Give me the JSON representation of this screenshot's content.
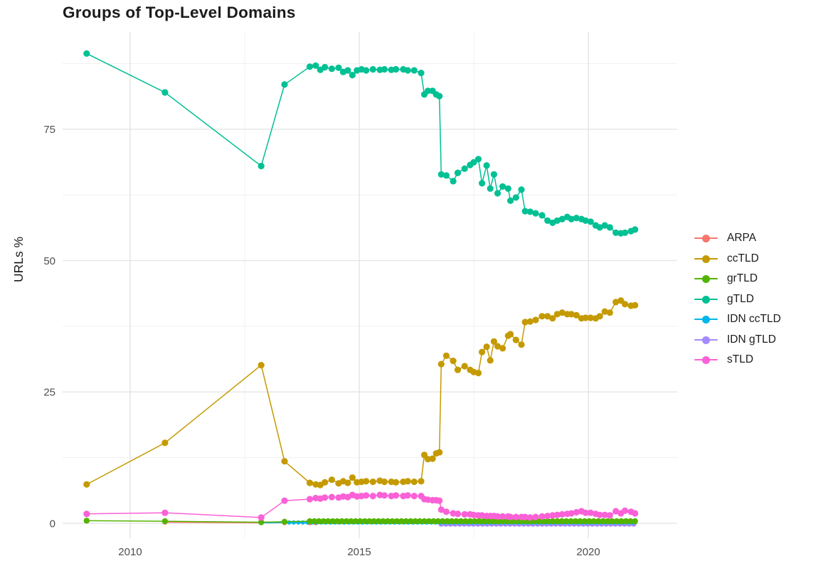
{
  "chart_data": {
    "type": "line",
    "title": "Groups of Top-Level Domains",
    "xlabel": "",
    "ylabel": "URLs %",
    "grid": true,
    "legend_position": "right",
    "xlim": [
      2008.525,
      2021.94
    ],
    "ylim": [
      -2.84,
      93.5
    ],
    "x_ticks": [
      2010,
      2015,
      2020
    ],
    "x_minor_ticks": [
      2012.5,
      2017.5
    ],
    "y_ticks": [
      0,
      25,
      50,
      75
    ],
    "y_minor_ticks": [
      12.5,
      37.5,
      62.5,
      87.5
    ],
    "legend": [
      {
        "label": "ARPA",
        "color": "#F8766D"
      },
      {
        "label": "ccTLD",
        "color": "#C49A00"
      },
      {
        "label": "grTLD",
        "color": "#53B400"
      },
      {
        "label": "gTLD",
        "color": "#00C094"
      },
      {
        "label": "IDN ccTLD",
        "color": "#00B6EB"
      },
      {
        "label": "IDN gTLD",
        "color": "#A58AFF"
      },
      {
        "label": "sTLD",
        "color": "#FB61D7"
      }
    ],
    "shared_x": [
      2009.05,
      2010.76,
      2012.86,
      2013.37,
      2013.92,
      2014.05,
      2014.15,
      2014.25,
      2014.4,
      2014.55,
      2014.65,
      2014.75,
      2014.85,
      2014.95,
      2015.05,
      2015.15,
      2015.3,
      2015.45,
      2015.55,
      2015.7,
      2015.8,
      2015.96,
      2016.06,
      2016.2,
      2016.35,
      2016.42,
      2016.5,
      2016.6,
      2016.68,
      2016.75,
      2016.79,
      2016.9,
      2017.05,
      2017.15,
      2017.3,
      2017.42,
      2017.5,
      2017.6,
      2017.68,
      2017.78,
      2017.86,
      2017.94,
      2018.02,
      2018.13,
      2018.25,
      2018.3,
      2018.42,
      2018.54,
      2018.62,
      2018.73,
      2018.85,
      2018.99,
      2019.11,
      2019.22,
      2019.32,
      2019.43,
      2019.54,
      2019.63,
      2019.74,
      2019.85,
      2019.94,
      2020.05,
      2020.16,
      2020.25,
      2020.36,
      2020.47,
      2020.6,
      2020.71,
      2020.8,
      2020.93,
      2021.02
    ],
    "series": [
      {
        "name": "ARPA",
        "color": "#F8766D",
        "r": 3.5,
        "x": [
          2010.76,
          2012.86,
          2013.37,
          2013.92,
          2014.05
        ],
        "y": [
          0.2,
          0.1,
          0.1,
          0.1,
          0.1
        ]
      },
      {
        "name": "IDN gTLD",
        "color": "#A58AFF",
        "r": 4,
        "flat": {
          "from": 2016.79,
          "to": 2021.02,
          "step": 0.1,
          "value": -0.1
        }
      },
      {
        "name": "IDN ccTLD",
        "color": "#00B6EB",
        "r": 3,
        "x": [
          2012.86
        ],
        "y": [
          0.1
        ],
        "flat": {
          "from": 2013.37,
          "to": 2021.02,
          "step": 0.1,
          "value": 0.15
        }
      },
      {
        "name": "gTLD",
        "color": "#00C094",
        "r": 4.6,
        "use_shared_x": true,
        "y": [
          89.4,
          82,
          68,
          83.5,
          86.9,
          87.1,
          86.3,
          86.8,
          86.5,
          86.7,
          85.9,
          86.2,
          85.3,
          86.2,
          86.4,
          86.2,
          86.4,
          86.3,
          86.4,
          86.3,
          86.4,
          86.4,
          86.2,
          86.2,
          85.7,
          81.6,
          82.3,
          82.3,
          81.6,
          81.3,
          66.4,
          66.2,
          65.1,
          66.7,
          67.5,
          68.2,
          68.7,
          69.3,
          64.7,
          68.1,
          63.7,
          66.4,
          62.8,
          64.1,
          63.7,
          61.4,
          62.0,
          63.5,
          59.4,
          59.3,
          59.0,
          58.6,
          57.6,
          57.2,
          57.6,
          57.9,
          58.3,
          57.9,
          58.1,
          57.9,
          57.6,
          57.4,
          56.7,
          56.3,
          56.7,
          56.3,
          55.3,
          55.2,
          55.3,
          55.6,
          55.9
        ]
      },
      {
        "name": "ccTLD",
        "color": "#C49A00",
        "r": 4.6,
        "use_shared_x": true,
        "y": [
          7.4,
          15.3,
          30.1,
          11.8,
          7.7,
          7.4,
          7.3,
          7.8,
          8.3,
          7.6,
          8.0,
          7.7,
          8.7,
          7.8,
          7.9,
          8.0,
          7.9,
          8.1,
          7.9,
          7.9,
          7.8,
          7.9,
          8.0,
          7.9,
          8.0,
          13.0,
          12.2,
          12.3,
          13.3,
          13.5,
          30.3,
          31.9,
          30.9,
          29.2,
          29.9,
          29.2,
          28.8,
          28.6,
          32.6,
          33.6,
          31.0,
          34.6,
          33.7,
          33.3,
          35.7,
          36.0,
          34.9,
          34.0,
          38.3,
          38.4,
          38.7,
          39.4,
          39.4,
          39.0,
          39.8,
          40.1,
          39.8,
          39.8,
          39.6,
          39.0,
          39.1,
          39.1,
          39.0,
          39.4,
          40.3,
          40.1,
          42.1,
          42.4,
          41.7,
          41.4,
          41.5
        ]
      },
      {
        "name": "grTLD",
        "color": "#53B400",
        "r": 4.2,
        "x": [
          2009.05,
          2010.76,
          2012.86,
          2013.37
        ],
        "y": [
          0.5,
          0.4,
          0.2,
          0.3
        ],
        "flat": {
          "from": 2013.92,
          "to": 2021.02,
          "step": 0.1,
          "value": 0.4
        }
      },
      {
        "name": "sTLD",
        "color": "#FB61D7",
        "r": 4.6,
        "use_shared_x": true,
        "y": [
          1.8,
          2.0,
          1.1,
          4.3,
          4.6,
          4.8,
          4.7,
          4.9,
          5.0,
          4.9,
          5.1,
          5.0,
          5.4,
          5.1,
          5.2,
          5.3,
          5.2,
          5.4,
          5.3,
          5.2,
          5.3,
          5.2,
          5.3,
          5.2,
          5.2,
          4.6,
          4.5,
          4.4,
          4.4,
          4.3,
          2.6,
          2.2,
          1.9,
          1.8,
          1.7,
          1.7,
          1.6,
          1.5,
          1.5,
          1.4,
          1.4,
          1.4,
          1.3,
          1.3,
          1.3,
          1.2,
          1.2,
          1.2,
          1.2,
          1.1,
          1.2,
          1.3,
          1.4,
          1.5,
          1.6,
          1.7,
          1.8,
          1.9,
          2.1,
          2.3,
          2.0,
          2.0,
          1.8,
          1.6,
          1.6,
          1.5,
          2.3,
          1.9,
          2.4,
          2.2,
          1.9
        ]
      }
    ]
  }
}
